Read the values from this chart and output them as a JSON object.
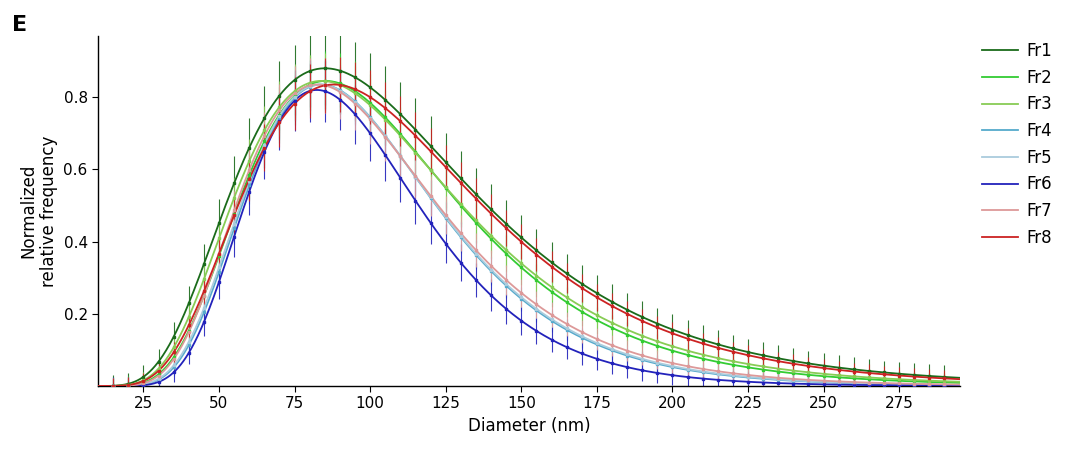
{
  "title_label": "E",
  "xlabel": "Diameter (nm)",
  "ylabel": "Normalized\nrelative frequency",
  "x_ticks": [
    25,
    50,
    75,
    100,
    125,
    150,
    175,
    200,
    225,
    250,
    275
  ],
  "xlim": [
    10,
    295
  ],
  "ylim": [
    0,
    0.97
  ],
  "y_ticks": [
    0.2,
    0.4,
    0.6,
    0.8
  ],
  "fractions": [
    {
      "name": "Fr1",
      "color": "#1a6b1a",
      "mu_log": 4.655,
      "sigma": 0.46,
      "peak": 0.88,
      "err_base": 0.03,
      "err_prop": 0.08
    },
    {
      "name": "Fr2",
      "color": "#33cc33",
      "mu_log": 4.615,
      "sigma": 0.41,
      "peak": 0.845,
      "err_base": 0.025,
      "err_prop": 0.07
    },
    {
      "name": "Fr3",
      "color": "#88cc55",
      "mu_log": 4.615,
      "sigma": 0.43,
      "peak": 0.845,
      "err_base": 0.022,
      "err_prop": 0.065
    },
    {
      "name": "Fr4",
      "color": "#55aacc",
      "mu_log": 4.565,
      "sigma": 0.37,
      "peak": 0.835,
      "err_base": 0.02,
      "err_prop": 0.055
    },
    {
      "name": "Fr5",
      "color": "#aaccdd",
      "mu_log": 4.565,
      "sigma": 0.375,
      "peak": 0.835,
      "err_base": 0.02,
      "err_prop": 0.055
    },
    {
      "name": "Fr6",
      "color": "#2222bb",
      "mu_log": 4.53,
      "sigma": 0.345,
      "peak": 0.82,
      "err_base": 0.025,
      "err_prop": 0.075
    },
    {
      "name": "Fr7",
      "color": "#dd9999",
      "mu_log": 4.565,
      "sigma": 0.39,
      "peak": 0.835,
      "err_base": 0.022,
      "err_prop": 0.065
    },
    {
      "name": "Fr8",
      "color": "#cc2222",
      "mu_log": 4.67,
      "sigma": 0.44,
      "peak": 0.835,
      "err_base": 0.022,
      "err_prop": 0.065
    }
  ],
  "background_color": "#ffffff",
  "figsize": [
    10.72,
    4.5
  ],
  "dpi": 100
}
